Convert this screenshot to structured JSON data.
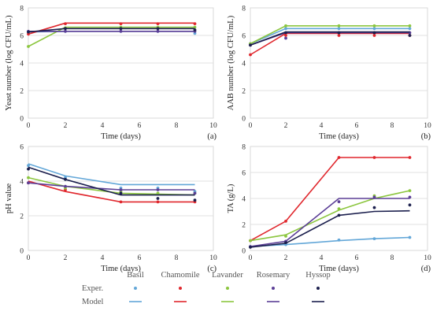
{
  "chart_data": [
    {
      "type": "line",
      "panel": "(a)",
      "xlabel": "Time (days)",
      "ylabel": "Yeast number  (log CFU/mL)",
      "xlim": [
        0,
        10
      ],
      "ylim": [
        0,
        8
      ],
      "xticks": [
        0,
        2,
        4,
        6,
        8,
        10
      ],
      "yticks": [
        0,
        2,
        4,
        6,
        8
      ],
      "series": [
        {
          "name": "Basil",
          "color": "#63a7d8",
          "points": [
            [
              0,
              6.25
            ],
            [
              2,
              6.3
            ],
            [
              5,
              6.3
            ],
            [
              7,
              6.3
            ],
            [
              9,
              6.15
            ]
          ],
          "model": [
            [
              0,
              6.25
            ],
            [
              2,
              6.3
            ],
            [
              9,
              6.3
            ]
          ]
        },
        {
          "name": "Chamomile",
          "color": "#e0272d",
          "points": [
            [
              0,
              6.1
            ],
            [
              2,
              6.85
            ],
            [
              5,
              6.85
            ],
            [
              7,
              6.85
            ],
            [
              9,
              6.85
            ]
          ],
          "model": [
            [
              0,
              6.1
            ],
            [
              2,
              6.9
            ],
            [
              9,
              6.9
            ]
          ]
        },
        {
          "name": "Lavander",
          "color": "#8cc63f",
          "points": [
            [
              0,
              5.2
            ],
            [
              2,
              6.55
            ],
            [
              5,
              6.6
            ],
            [
              7,
              6.6
            ],
            [
              9,
              6.6
            ]
          ],
          "model": [
            [
              0,
              5.2
            ],
            [
              2,
              6.6
            ],
            [
              9,
              6.6
            ]
          ]
        },
        {
          "name": "Rosemary",
          "color": "#5b3e96",
          "points": [
            [
              0,
              6.3
            ],
            [
              2,
              6.3
            ],
            [
              5,
              6.3
            ],
            [
              7,
              6.3
            ],
            [
              9,
              6.3
            ]
          ],
          "model": [
            [
              0,
              6.3
            ],
            [
              2,
              6.3
            ],
            [
              9,
              6.3
            ]
          ]
        },
        {
          "name": "Hyssop",
          "color": "#1b1f4d",
          "points": [
            [
              0,
              6.25
            ],
            [
              2,
              6.5
            ],
            [
              5,
              6.5
            ],
            [
              7,
              6.5
            ],
            [
              9,
              6.4
            ]
          ],
          "model": [
            [
              0,
              6.25
            ],
            [
              2,
              6.5
            ],
            [
              9,
              6.5
            ]
          ]
        }
      ]
    },
    {
      "type": "line",
      "panel": "(b)",
      "xlabel": "Time (days)",
      "ylabel": "AAB number (log CFU/mL)",
      "xlim": [
        0,
        10
      ],
      "ylim": [
        0,
        8
      ],
      "xticks": [
        0,
        2,
        4,
        6,
        8,
        10
      ],
      "yticks": [
        0,
        2,
        4,
        6,
        8
      ],
      "series": [
        {
          "name": "Basil",
          "color": "#63a7d8",
          "points": [
            [
              0,
              5.4
            ],
            [
              2,
              6.5
            ],
            [
              5,
              6.5
            ],
            [
              7,
              6.5
            ],
            [
              9,
              6.5
            ]
          ],
          "model": [
            [
              0,
              5.4
            ],
            [
              2,
              6.5
            ],
            [
              9,
              6.5
            ]
          ]
        },
        {
          "name": "Chamomile",
          "color": "#e0272d",
          "points": [
            [
              0,
              4.6
            ],
            [
              2,
              6.0
            ],
            [
              5,
              6.0
            ],
            [
              7,
              6.0
            ],
            [
              9,
              6.0
            ]
          ],
          "model": [
            [
              0,
              4.6
            ],
            [
              2,
              6.15
            ],
            [
              9,
              6.15
            ]
          ]
        },
        {
          "name": "Lavander",
          "color": "#8cc63f",
          "points": [
            [
              0,
              5.4
            ],
            [
              2,
              6.7
            ],
            [
              5,
              6.7
            ],
            [
              7,
              6.7
            ],
            [
              9,
              6.7
            ]
          ],
          "model": [
            [
              0,
              5.4
            ],
            [
              2,
              6.7
            ],
            [
              9,
              6.7
            ]
          ]
        },
        {
          "name": "Rosemary",
          "color": "#5b3e96",
          "points": [
            [
              0,
              5.3
            ],
            [
              2,
              5.8
            ],
            [
              5,
              6.2
            ],
            [
              7,
              6.2
            ],
            [
              9,
              6.2
            ]
          ],
          "model": [
            [
              0,
              5.3
            ],
            [
              2,
              6.2
            ],
            [
              9,
              6.2
            ]
          ]
        },
        {
          "name": "Hyssop",
          "color": "#1b1f4d",
          "points": [
            [
              0,
              5.3
            ],
            [
              2,
              6.2
            ],
            [
              5,
              6.2
            ],
            [
              7,
              6.2
            ],
            [
              9,
              6.0
            ]
          ],
          "model": [
            [
              0,
              5.3
            ],
            [
              2,
              6.25
            ],
            [
              9,
              6.25
            ]
          ]
        }
      ]
    },
    {
      "type": "line",
      "panel": "(c)",
      "xlabel": "Time (days)",
      "ylabel": "pH value",
      "xlim": [
        0,
        10
      ],
      "ylim": [
        0,
        6
      ],
      "xticks": [
        0,
        2,
        4,
        6,
        8,
        10
      ],
      "yticks": [
        0,
        2,
        4,
        6
      ],
      "series": [
        {
          "name": "Basil",
          "color": "#63a7d8",
          "points": [
            [
              0,
              4.9
            ],
            [
              2,
              4.2
            ],
            [
              5,
              3.6
            ],
            [
              7,
              3.6
            ],
            [
              9,
              3.4
            ]
          ],
          "model": [
            [
              0,
              5.0
            ],
            [
              2,
              4.3
            ],
            [
              5,
              3.8
            ],
            [
              9,
              3.8
            ]
          ]
        },
        {
          "name": "Chamomile",
          "color": "#e0272d",
          "points": [
            [
              0,
              3.9
            ],
            [
              2,
              3.5
            ],
            [
              5,
              2.8
            ],
            [
              7,
              2.8
            ],
            [
              9,
              2.8
            ]
          ],
          "model": [
            [
              0,
              4.0
            ],
            [
              2,
              3.4
            ],
            [
              5,
              2.8
            ],
            [
              9,
              2.8
            ]
          ]
        },
        {
          "name": "Lavander",
          "color": "#8cc63f",
          "points": [
            [
              0,
              4.2
            ],
            [
              2,
              3.6
            ],
            [
              5,
              3.4
            ],
            [
              7,
              3.3
            ],
            [
              9,
              3.3
            ]
          ],
          "model": [
            [
              0,
              4.2
            ],
            [
              2,
              3.7
            ],
            [
              5,
              3.3
            ],
            [
              9,
              3.2
            ]
          ]
        },
        {
          "name": "Rosemary",
          "color": "#5b3e96",
          "points": [
            [
              0,
              3.9
            ],
            [
              2,
              3.7
            ],
            [
              5,
              3.5
            ],
            [
              7,
              3.5
            ],
            [
              9,
              3.3
            ]
          ],
          "model": [
            [
              0,
              3.9
            ],
            [
              2,
              3.7
            ],
            [
              5,
              3.5
            ],
            [
              9,
              3.5
            ]
          ]
        },
        {
          "name": "Hyssop",
          "color": "#1b1f4d",
          "points": [
            [
              0,
              4.7
            ],
            [
              2,
              4.1
            ],
            [
              5,
              3.3
            ],
            [
              7,
              3.0
            ],
            [
              9,
              2.9
            ]
          ],
          "model": [
            [
              0,
              4.8
            ],
            [
              2,
              4.1
            ],
            [
              5,
              3.2
            ],
            [
              9,
              3.2
            ]
          ]
        }
      ]
    },
    {
      "type": "line",
      "panel": "(d)",
      "xlabel": "Time (days)",
      "ylabel": "TA (g/L)",
      "xlim": [
        0,
        10
      ],
      "ylim": [
        0,
        8
      ],
      "xticks": [
        0,
        2,
        4,
        6,
        8,
        10
      ],
      "yticks": [
        0,
        2,
        4,
        6,
        8
      ],
      "series": [
        {
          "name": "Basil",
          "color": "#63a7d8",
          "points": [
            [
              0,
              0.3
            ],
            [
              2,
              0.45
            ],
            [
              5,
              0.8
            ],
            [
              7,
              0.9
            ],
            [
              9,
              1.0
            ]
          ],
          "model": [
            [
              0,
              0.3
            ],
            [
              2,
              0.45
            ],
            [
              5,
              0.75
            ],
            [
              7,
              0.9
            ],
            [
              9,
              1.0
            ]
          ]
        },
        {
          "name": "Chamomile",
          "color": "#e0272d",
          "points": [
            [
              0,
              0.75
            ],
            [
              2,
              2.25
            ],
            [
              5,
              7.15
            ],
            [
              7,
              7.15
            ],
            [
              9,
              7.15
            ]
          ],
          "model": [
            [
              0,
              0.75
            ],
            [
              2,
              2.25
            ],
            [
              5,
              7.15
            ],
            [
              9,
              7.15
            ]
          ]
        },
        {
          "name": "Lavander",
          "color": "#8cc63f",
          "points": [
            [
              0,
              0.75
            ],
            [
              2,
              1.1
            ],
            [
              5,
              3.2
            ],
            [
              7,
              4.2
            ],
            [
              9,
              4.6
            ]
          ],
          "model": [
            [
              0,
              0.75
            ],
            [
              2,
              1.2
            ],
            [
              5,
              3.1
            ],
            [
              7,
              4.0
            ],
            [
              9,
              4.6
            ]
          ]
        },
        {
          "name": "Rosemary",
          "color": "#5b3e96",
          "points": [
            [
              0,
              0.3
            ],
            [
              2,
              0.7
            ],
            [
              5,
              3.75
            ],
            [
              7,
              4.1
            ],
            [
              9,
              4.1
            ]
          ],
          "model": [
            [
              0,
              0.3
            ],
            [
              2,
              0.7
            ],
            [
              5,
              4.0
            ],
            [
              9,
              4.0
            ]
          ]
        },
        {
          "name": "Hyssop",
          "color": "#1b1f4d",
          "points": [
            [
              0,
              0.25
            ],
            [
              2,
              0.6
            ],
            [
              5,
              2.7
            ],
            [
              7,
              3.3
            ],
            [
              9,
              3.5
            ]
          ],
          "model": [
            [
              0,
              0.25
            ],
            [
              2,
              0.55
            ],
            [
              5,
              2.7
            ],
            [
              7,
              3.0
            ],
            [
              9,
              3.05
            ]
          ]
        }
      ]
    }
  ],
  "legend": {
    "exper_label": "Exper.",
    "model_label": "Model",
    "names": [
      "Basil",
      "Chamomile",
      "Lavander",
      "Rosemary",
      "Hyssop"
    ]
  }
}
